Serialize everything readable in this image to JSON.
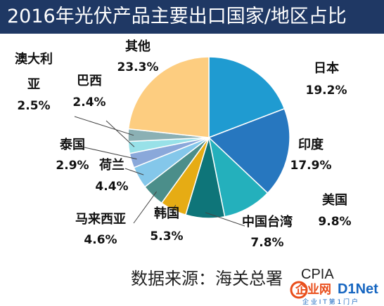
{
  "title": "2016年光伏产品主要出口国家/地区占比",
  "source": "数据来源：海关总署",
  "source_tail": "CPIA",
  "watermark": {
    "brand": "企业网",
    "brand_latin": "D1Net",
    "slogan": "企 业 I T 第 1 门 户"
  },
  "colors": {
    "title_bg": "#1f3864",
    "leader_line": "#444444"
  },
  "chart_data": {
    "type": "pie",
    "title": "2016年光伏产品主要出口国家/地区占比",
    "start": "12 o'clock",
    "direction": "clockwise",
    "slices": [
      {
        "label": "日本",
        "value": 19.2,
        "display": "19.2%",
        "color": "#1f9bd1"
      },
      {
        "label": "印度",
        "value": 17.9,
        "display": "17.9%",
        "color": "#2777bf"
      },
      {
        "label": "美国",
        "value": 9.8,
        "display": "9.8%",
        "color": "#24b0bc"
      },
      {
        "label": "中国台湾",
        "value": 7.8,
        "display": "7.8%",
        "color": "#0e7579"
      },
      {
        "label": "韩国",
        "value": 5.3,
        "display": "5.3%",
        "color": "#e6ac14"
      },
      {
        "label": "马来西亚",
        "value": 4.6,
        "display": "4.6%",
        "color": "#4b8e8a"
      },
      {
        "label": "荷兰",
        "value": 4.4,
        "display": "4.4%",
        "color": "#84c7ea"
      },
      {
        "label": "泰国",
        "value": 2.9,
        "display": "2.9%",
        "color": "#8aa8da"
      },
      {
        "label": "巴西",
        "value": 2.4,
        "display": "2.4%",
        "color": "#98e1e8"
      },
      {
        "label": "澳大利亚",
        "value": 2.5,
        "display": "2.5%",
        "color": "#8bb0b4"
      },
      {
        "label": "其他",
        "value": 23.3,
        "display": "23.3%",
        "color": "#fdcd80"
      }
    ]
  }
}
